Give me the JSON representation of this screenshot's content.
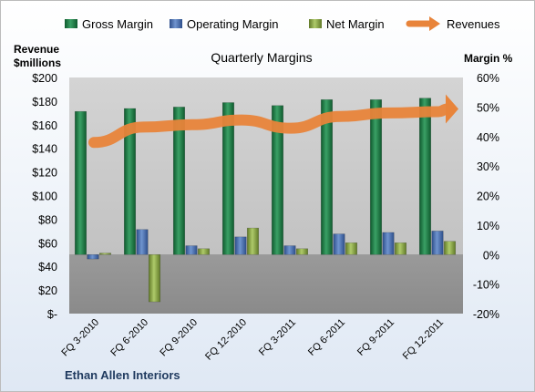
{
  "chart_data": {
    "type": "bar",
    "title": "Quarterly Margins",
    "left_axis_label_line1": "Revenue",
    "left_axis_label_line2": "$millions",
    "right_axis_label": "Margin %",
    "footer": "Ethan Allen Interiors",
    "categories": [
      "FQ 3-2010",
      "FQ 6-2010",
      "FQ 9-2010",
      "FQ 12-2010",
      "FQ 3-2011",
      "FQ 6-2011",
      "FQ 9-2011",
      "FQ 12-2011"
    ],
    "series": [
      {
        "name": "Gross Margin",
        "axis": "right",
        "kind": "bar",
        "color": "#1e7a45",
        "values": [
          48.5,
          49.5,
          50,
          51.5,
          50.5,
          52.5,
          52.5,
          53
        ]
      },
      {
        "name": "Operating Margin",
        "axis": "right",
        "kind": "bar",
        "color": "#4a70b0",
        "values": [
          -1.5,
          8.5,
          3,
          6,
          3,
          7,
          7.5,
          8
        ]
      },
      {
        "name": "Net Margin",
        "axis": "right",
        "kind": "bar",
        "color": "#8aaa44",
        "values": [
          0.5,
          -16,
          2,
          9,
          2,
          4,
          4,
          4.5
        ]
      },
      {
        "name": "Revenues",
        "axis": "left",
        "kind": "line",
        "color": "#e8843a",
        "values": [
          145,
          158,
          160,
          164,
          157,
          167,
          170,
          171
        ]
      }
    ],
    "left_axis": {
      "min": 0,
      "max": 200,
      "step": 20,
      "tick_labels": [
        "$-",
        "$20",
        "$40",
        "$60",
        "$80",
        "$100",
        "$120",
        "$140",
        "$160",
        "$180",
        "$200"
      ]
    },
    "right_axis": {
      "min": -20,
      "max": 60,
      "step": 10,
      "tick_labels": [
        "-20%",
        "-10%",
        "0%",
        "10%",
        "20%",
        "30%",
        "40%",
        "50%",
        "60%"
      ]
    },
    "grid": false,
    "legend_position": "top"
  }
}
